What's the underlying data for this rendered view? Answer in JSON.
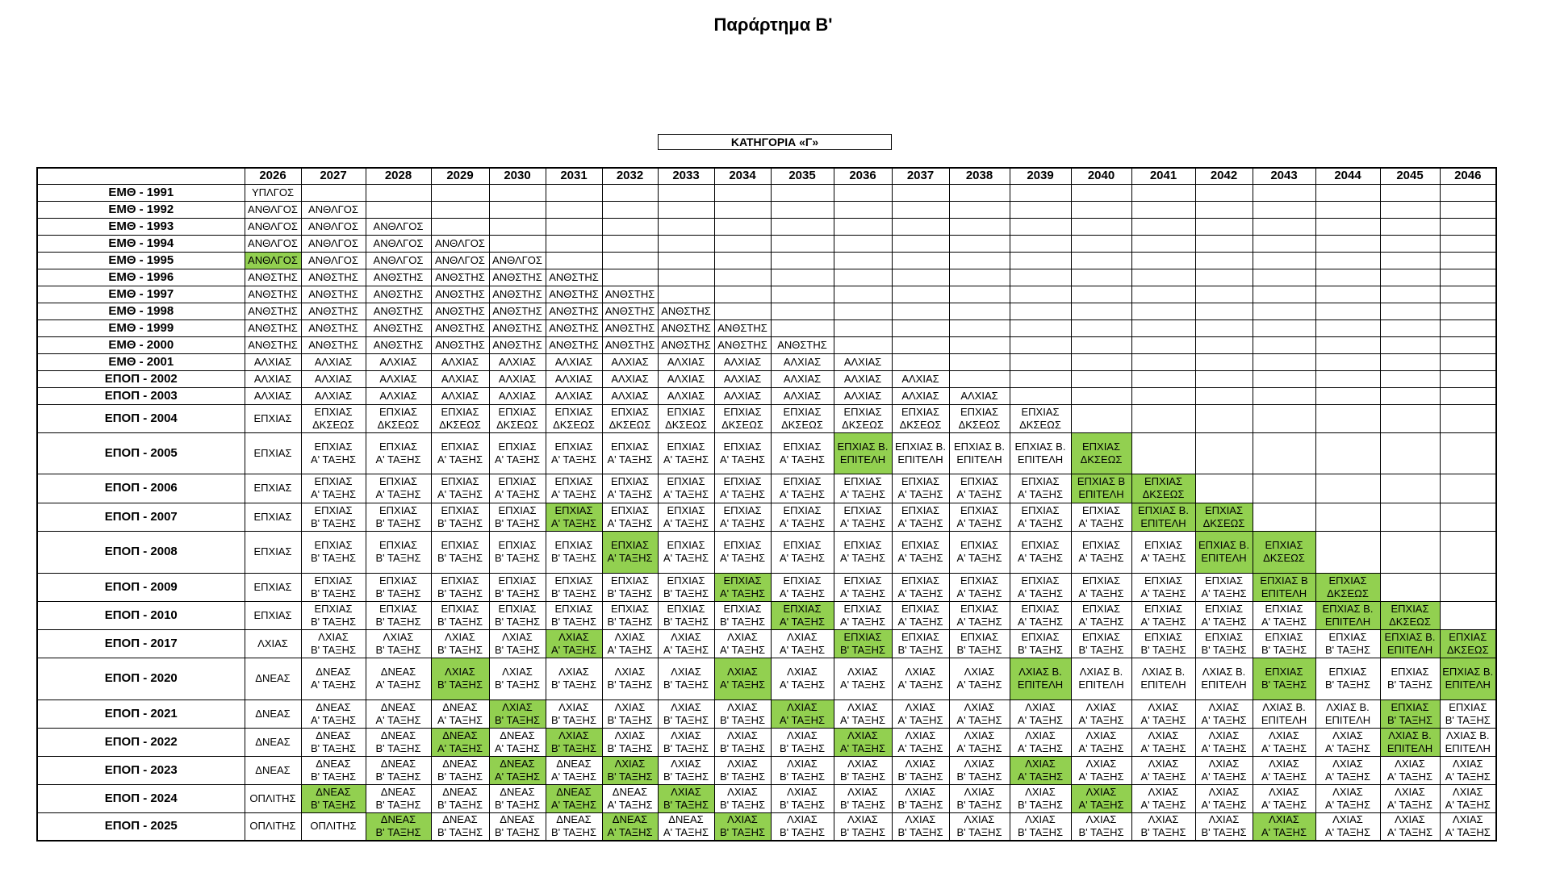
{
  "title": "Παράρτημα Β'",
  "category": "ΚΑΤΗΓΟΡΙΑ «Γ»",
  "colors": {
    "highlight": "#92d050",
    "border": "#000000"
  },
  "table": {
    "years": [
      "2026",
      "2027",
      "2028",
      "2029",
      "2030",
      "2031",
      "2032",
      "2033",
      "2034",
      "2035",
      "2036",
      "2037",
      "2038",
      "2039",
      "2040",
      "2041",
      "2042",
      "2043",
      "2044",
      "2045",
      "2046"
    ],
    "rows": [
      {
        "label": "ΕΜΘ - 1991",
        "cells": [
          "ΥΠΛΓΟΣ"
        ]
      },
      {
        "label": "ΕΜΘ - 1992",
        "cells": [
          "ΑΝΘΛΓΟΣ",
          "ΑΝΘΛΓΟΣ"
        ]
      },
      {
        "label": "ΕΜΘ - 1993",
        "cells": [
          "ΑΝΘΛΓΟΣ",
          "ΑΝΘΛΓΟΣ",
          "ΑΝΘΛΓΟΣ"
        ]
      },
      {
        "label": "ΕΜΘ - 1994",
        "cells": [
          "ΑΝΘΛΓΟΣ",
          "ΑΝΘΛΓΟΣ",
          "ΑΝΘΛΓΟΣ",
          "ΑΝΘΛΓΟΣ"
        ]
      },
      {
        "label": "ΕΜΘ - 1995",
        "cells": [
          "ΑΝΘΛΓΟΣ",
          "ΑΝΘΛΓΟΣ",
          "ΑΝΘΛΓΟΣ",
          "ΑΝΘΛΓΟΣ",
          "ΑΝΘΛΓΟΣ"
        ],
        "highlight": [
          0
        ]
      },
      {
        "label": "ΕΜΘ - 1996",
        "cells": [
          "ΑΝΘΣΤΗΣ",
          "ΑΝΘΣΤΗΣ",
          "ΑΝΘΣΤΗΣ",
          "ΑΝΘΣΤΗΣ",
          "ΑΝΘΣΤΗΣ",
          "ΑΝΘΣΤΗΣ"
        ]
      },
      {
        "label": "ΕΜΘ - 1997",
        "cells": [
          "ΑΝΘΣΤΗΣ",
          "ΑΝΘΣΤΗΣ",
          "ΑΝΘΣΤΗΣ",
          "ΑΝΘΣΤΗΣ",
          "ΑΝΘΣΤΗΣ",
          "ΑΝΘΣΤΗΣ",
          "ΑΝΘΣΤΗΣ"
        ]
      },
      {
        "label": "ΕΜΘ - 1998",
        "cells": [
          "ΑΝΘΣΤΗΣ",
          "ΑΝΘΣΤΗΣ",
          "ΑΝΘΣΤΗΣ",
          "ΑΝΘΣΤΗΣ",
          "ΑΝΘΣΤΗΣ",
          "ΑΝΘΣΤΗΣ",
          "ΑΝΘΣΤΗΣ",
          "ΑΝΘΣΤΗΣ"
        ]
      },
      {
        "label": "ΕΜΘ - 1999",
        "cells": [
          "ΑΝΘΣΤΗΣ",
          "ΑΝΘΣΤΗΣ",
          "ΑΝΘΣΤΗΣ",
          "ΑΝΘΣΤΗΣ",
          "ΑΝΘΣΤΗΣ",
          "ΑΝΘΣΤΗΣ",
          "ΑΝΘΣΤΗΣ",
          "ΑΝΘΣΤΗΣ",
          "ΑΝΘΣΤΗΣ"
        ]
      },
      {
        "label": "ΕΜΘ - 2000",
        "cells": [
          "ΑΝΘΣΤΗΣ",
          "ΑΝΘΣΤΗΣ",
          "ΑΝΘΣΤΗΣ",
          "ΑΝΘΣΤΗΣ",
          "ΑΝΘΣΤΗΣ",
          "ΑΝΘΣΤΗΣ",
          "ΑΝΘΣΤΗΣ",
          "ΑΝΘΣΤΗΣ",
          "ΑΝΘΣΤΗΣ",
          "ΑΝΘΣΤΗΣ"
        ]
      },
      {
        "label": "ΕΜΘ - 2001",
        "cells": [
          "ΑΛΧΙΑΣ",
          "ΑΛΧΙΑΣ",
          "ΑΛΧΙΑΣ",
          "ΑΛΧΙΑΣ",
          "ΑΛΧΙΑΣ",
          "ΑΛΧΙΑΣ",
          "ΑΛΧΙΑΣ",
          "ΑΛΧΙΑΣ",
          "ΑΛΧΙΑΣ",
          "ΑΛΧΙΑΣ",
          "ΑΛΧΙΑΣ"
        ]
      },
      {
        "label": "ΕΠΟΠ - 2002",
        "cells": [
          "ΑΛΧΙΑΣ",
          "ΑΛΧΙΑΣ",
          "ΑΛΧΙΑΣ",
          "ΑΛΧΙΑΣ",
          "ΑΛΧΙΑΣ",
          "ΑΛΧΙΑΣ",
          "ΑΛΧΙΑΣ",
          "ΑΛΧΙΑΣ",
          "ΑΛΧΙΑΣ",
          "ΑΛΧΙΑΣ",
          "ΑΛΧΙΑΣ",
          "ΑΛΧΙΑΣ"
        ]
      },
      {
        "label": "ΕΠΟΠ - 2003",
        "cells": [
          "ΑΛΧΙΑΣ",
          "ΑΛΧΙΑΣ",
          "ΑΛΧΙΑΣ",
          "ΑΛΧΙΑΣ",
          "ΑΛΧΙΑΣ",
          "ΑΛΧΙΑΣ",
          "ΑΛΧΙΑΣ",
          "ΑΛΧΙΑΣ",
          "ΑΛΧΙΑΣ",
          "ΑΛΧΙΑΣ",
          "ΑΛΧΙΑΣ",
          "ΑΛΧΙΑΣ",
          "ΑΛΧΙΑΣ"
        ]
      },
      {
        "label": "ΕΠΟΠ - 2004",
        "cells": [
          "ΕΠΧΙΑΣ",
          "ΕΠΧΙΑΣ\nΔΚΣΕΩΣ",
          "ΕΠΧΙΑΣ\nΔΚΣΕΩΣ",
          "ΕΠΧΙΑΣ\nΔΚΣΕΩΣ",
          "ΕΠΧΙΑΣ\nΔΚΣΕΩΣ",
          "ΕΠΧΙΑΣ\nΔΚΣΕΩΣ",
          "ΕΠΧΙΑΣ\nΔΚΣΕΩΣ",
          "ΕΠΧΙΑΣ\nΔΚΣΕΩΣ",
          "ΕΠΧΙΑΣ\nΔΚΣΕΩΣ",
          "ΕΠΧΙΑΣ\nΔΚΣΕΩΣ",
          "ΕΠΧΙΑΣ\nΔΚΣΕΩΣ",
          "ΕΠΧΙΑΣ\nΔΚΣΕΩΣ",
          "ΕΠΧΙΑΣ\nΔΚΣΕΩΣ",
          "ΕΠΧΙΑΣ\nΔΚΣΕΩΣ"
        ]
      },
      {
        "label": "ΕΠΟΠ - 2005",
        "cells": [
          "ΕΠΧΙΑΣ",
          "ΕΠΧΙΑΣ\nΑ' ΤΑΞΗΣ",
          "ΕΠΧΙΑΣ\nΑ' ΤΑΞΗΣ",
          "ΕΠΧΙΑΣ\nΑ' ΤΑΞΗΣ",
          "ΕΠΧΙΑΣ\nΑ' ΤΑΞΗΣ",
          "ΕΠΧΙΑΣ\nΑ' ΤΑΞΗΣ",
          "ΕΠΧΙΑΣ\nΑ' ΤΑΞΗΣ",
          "ΕΠΧΙΑΣ\nΑ' ΤΑΞΗΣ",
          "ΕΠΧΙΑΣ\nΑ' ΤΑΞΗΣ",
          "ΕΠΧΙΑΣ\nΑ' ΤΑΞΗΣ",
          "ΕΠΧΙΑΣ Β.\nΕΠΙΤΕΛΗ",
          "ΕΠΧΙΑΣ Β.\nΕΠΙΤΕΛΗ",
          "ΕΠΧΙΑΣ Β.\nΕΠΙΤΕΛΗ",
          "ΕΠΧΙΑΣ Β.\nΕΠΙΤΕΛΗ",
          "ΕΠΧΙΑΣ\nΔΚΣΕΩΣ"
        ],
        "highlight": [
          10,
          14
        ]
      },
      {
        "label": "ΕΠΟΠ - 2006",
        "cells": [
          "ΕΠΧΙΑΣ",
          "ΕΠΧΙΑΣ\nΑ' ΤΑΞΗΣ",
          "ΕΠΧΙΑΣ\nΑ' ΤΑΞΗΣ",
          "ΕΠΧΙΑΣ\nΑ' ΤΑΞΗΣ",
          "ΕΠΧΙΑΣ\nΑ' ΤΑΞΗΣ",
          "ΕΠΧΙΑΣ\nΑ' ΤΑΞΗΣ",
          "ΕΠΧΙΑΣ\nΑ' ΤΑΞΗΣ",
          "ΕΠΧΙΑΣ\nΑ' ΤΑΞΗΣ",
          "ΕΠΧΙΑΣ\nΑ' ΤΑΞΗΣ",
          "ΕΠΧΙΑΣ\nΑ' ΤΑΞΗΣ",
          "ΕΠΧΙΑΣ\nΑ' ΤΑΞΗΣ",
          "ΕΠΧΙΑΣ\nΑ' ΤΑΞΗΣ",
          "ΕΠΧΙΑΣ\nΑ' ΤΑΞΗΣ",
          "ΕΠΧΙΑΣ\nΑ' ΤΑΞΗΣ",
          "ΕΠΧΙΑΣ Β\nΕΠΙΤΕΛΗ",
          "ΕΠΧΙΑΣ\nΔΚΣΕΩΣ"
        ],
        "highlight": [
          14,
          15
        ]
      },
      {
        "label": "ΕΠΟΠ - 2007",
        "cells": [
          "ΕΠΧΙΑΣ",
          "ΕΠΧΙΑΣ\nΒ' ΤΑΞΗΣ",
          "ΕΠΧΙΑΣ\nΒ' ΤΑΞΗΣ",
          "ΕΠΧΙΑΣ\nΒ' ΤΑΞΗΣ",
          "ΕΠΧΙΑΣ\nΒ' ΤΑΞΗΣ",
          "ΕΠΧΙΑΣ\nΑ' ΤΑΞΗΣ",
          "ΕΠΧΙΑΣ\nΑ' ΤΑΞΗΣ",
          "ΕΠΧΙΑΣ\nΑ' ΤΑΞΗΣ",
          "ΕΠΧΙΑΣ\nΑ' ΤΑΞΗΣ",
          "ΕΠΧΙΑΣ\nΑ' ΤΑΞΗΣ",
          "ΕΠΧΙΑΣ\nΑ' ΤΑΞΗΣ",
          "ΕΠΧΙΑΣ\nΑ' ΤΑΞΗΣ",
          "ΕΠΧΙΑΣ\nΑ' ΤΑΞΗΣ",
          "ΕΠΧΙΑΣ\nΑ' ΤΑΞΗΣ",
          "ΕΠΧΙΑΣ\nΑ' ΤΑΞΗΣ",
          "ΕΠΧΙΑΣ Β.\nΕΠΙΤΕΛΗ",
          "ΕΠΧΙΑΣ\nΔΚΣΕΩΣ"
        ],
        "highlight": [
          5,
          15,
          16
        ]
      },
      {
        "label": "ΕΠΟΠ - 2008",
        "cells": [
          "ΕΠΧΙΑΣ",
          "ΕΠΧΙΑΣ\nΒ' ΤΑΞΗΣ",
          "ΕΠΧΙΑΣ\nΒ' ΤΑΞΗΣ",
          "ΕΠΧΙΑΣ\nΒ' ΤΑΞΗΣ",
          "ΕΠΧΙΑΣ\nΒ' ΤΑΞΗΣ",
          "ΕΠΧΙΑΣ\nΒ' ΤΑΞΗΣ",
          "ΕΠΧΙΑΣ\nΑ' ΤΑΞΗΣ",
          "ΕΠΧΙΑΣ\nΑ' ΤΑΞΗΣ",
          "ΕΠΧΙΑΣ\nΑ' ΤΑΞΗΣ",
          "ΕΠΧΙΑΣ\nΑ' ΤΑΞΗΣ",
          "ΕΠΧΙΑΣ\nΑ' ΤΑΞΗΣ",
          "ΕΠΧΙΑΣ\nΑ' ΤΑΞΗΣ",
          "ΕΠΧΙΑΣ\nΑ' ΤΑΞΗΣ",
          "ΕΠΧΙΑΣ\nΑ' ΤΑΞΗΣ",
          "ΕΠΧΙΑΣ\nΑ' ΤΑΞΗΣ",
          "ΕΠΧΙΑΣ\nΑ' ΤΑΞΗΣ",
          "ΕΠΧΙΑΣ Β.\nΕΠΙΤΕΛΗ",
          "ΕΠΧΙΑΣ\nΔΚΣΕΩΣ"
        ],
        "highlight": [
          6,
          16,
          17
        ]
      },
      {
        "label": "ΕΠΟΠ - 2009",
        "cells": [
          "ΕΠΧΙΑΣ",
          "ΕΠΧΙΑΣ\nΒ' ΤΑΞΗΣ",
          "ΕΠΧΙΑΣ\nΒ' ΤΑΞΗΣ",
          "ΕΠΧΙΑΣ\nΒ' ΤΑΞΗΣ",
          "ΕΠΧΙΑΣ\nΒ' ΤΑΞΗΣ",
          "ΕΠΧΙΑΣ\nΒ' ΤΑΞΗΣ",
          "ΕΠΧΙΑΣ\nΒ' ΤΑΞΗΣ",
          "ΕΠΧΙΑΣ\nΒ' ΤΑΞΗΣ",
          "ΕΠΧΙΑΣ\nΑ' ΤΑΞΗΣ",
          "ΕΠΧΙΑΣ\nΑ' ΤΑΞΗΣ",
          "ΕΠΧΙΑΣ\nΑ' ΤΑΞΗΣ",
          "ΕΠΧΙΑΣ\nΑ' ΤΑΞΗΣ",
          "ΕΠΧΙΑΣ\nΑ' ΤΑΞΗΣ",
          "ΕΠΧΙΑΣ\nΑ' ΤΑΞΗΣ",
          "ΕΠΧΙΑΣ\nΑ' ΤΑΞΗΣ",
          "ΕΠΧΙΑΣ\nΑ' ΤΑΞΗΣ",
          "ΕΠΧΙΑΣ\nΑ' ΤΑΞΗΣ",
          "ΕΠΧΙΑΣ Β\nΕΠΙΤΕΛΗ",
          "ΕΠΧΙΑΣ\nΔΚΣΕΩΣ"
        ],
        "highlight": [
          8,
          17,
          18
        ]
      },
      {
        "label": "ΕΠΟΠ - 2010",
        "cells": [
          "ΕΠΧΙΑΣ",
          "ΕΠΧΙΑΣ\nΒ' ΤΑΞΗΣ",
          "ΕΠΧΙΑΣ\nΒ' ΤΑΞΗΣ",
          "ΕΠΧΙΑΣ\nΒ' ΤΑΞΗΣ",
          "ΕΠΧΙΑΣ\nΒ' ΤΑΞΗΣ",
          "ΕΠΧΙΑΣ\nΒ' ΤΑΞΗΣ",
          "ΕΠΧΙΑΣ\nΒ' ΤΑΞΗΣ",
          "ΕΠΧΙΑΣ\nΒ' ΤΑΞΗΣ",
          "ΕΠΧΙΑΣ\nΒ' ΤΑΞΗΣ",
          "ΕΠΧΙΑΣ\nΑ' ΤΑΞΗΣ",
          "ΕΠΧΙΑΣ\nΑ' ΤΑΞΗΣ",
          "ΕΠΧΙΑΣ\nΑ' ΤΑΞΗΣ",
          "ΕΠΧΙΑΣ\nΑ' ΤΑΞΗΣ",
          "ΕΠΧΙΑΣ\nΑ' ΤΑΞΗΣ",
          "ΕΠΧΙΑΣ\nΑ' ΤΑΞΗΣ",
          "ΕΠΧΙΑΣ\nΑ' ΤΑΞΗΣ",
          "ΕΠΧΙΑΣ\nΑ' ΤΑΞΗΣ",
          "ΕΠΧΙΑΣ\nΑ' ΤΑΞΗΣ",
          "ΕΠΧΙΑΣ Β.\nΕΠΙΤΕΛΗ",
          "ΕΠΧΙΑΣ\nΔΚΣΕΩΣ"
        ],
        "highlight": [
          9,
          18,
          19
        ]
      },
      {
        "label": "ΕΠΟΠ - 2017",
        "cells": [
          "ΛΧΙΑΣ",
          "ΛΧΙΑΣ\nΒ' ΤΑΞΗΣ",
          "ΛΧΙΑΣ\nΒ' ΤΑΞΗΣ",
          "ΛΧΙΑΣ\nΒ' ΤΑΞΗΣ",
          "ΛΧΙΑΣ\nΒ' ΤΑΞΗΣ",
          "ΛΧΙΑΣ\nΑ' ΤΑΞΗΣ",
          "ΛΧΙΑΣ\nΑ' ΤΑΞΗΣ",
          "ΛΧΙΑΣ\nΑ' ΤΑΞΗΣ",
          "ΛΧΙΑΣ\nΑ' ΤΑΞΗΣ",
          "ΛΧΙΑΣ\nΑ' ΤΑΞΗΣ",
          "ΕΠΧΙΑΣ\nΒ' ΤΑΞΗΣ",
          "ΕΠΧΙΑΣ\nΒ' ΤΑΞΗΣ",
          "ΕΠΧΙΑΣ\nΒ' ΤΑΞΗΣ",
          "ΕΠΧΙΑΣ\nΒ' ΤΑΞΗΣ",
          "ΕΠΧΙΑΣ\nΒ' ΤΑΞΗΣ",
          "ΕΠΧΙΑΣ\nΒ' ΤΑΞΗΣ",
          "ΕΠΧΙΑΣ\nΒ' ΤΑΞΗΣ",
          "ΕΠΧΙΑΣ\nΒ' ΤΑΞΗΣ",
          "ΕΠΧΙΑΣ\nΒ' ΤΑΞΗΣ",
          "ΕΠΧΙΑΣ Β.\nΕΠΙΤΕΛΗ",
          "ΕΠΧΙΑΣ\nΔΚΣΕΩΣ"
        ],
        "highlight": [
          5,
          10,
          19,
          20
        ]
      },
      {
        "label": "ΕΠΟΠ - 2020",
        "cells": [
          "ΔΝΕΑΣ",
          "ΔΝΕΑΣ\nΑ' ΤΑΞΗΣ",
          "ΔΝΕΑΣ\nΑ' ΤΑΞΗΣ",
          "ΛΧΙΑΣ\nΒ' ΤΑΞΗΣ",
          "ΛΧΙΑΣ\nΒ' ΤΑΞΗΣ",
          "ΛΧΙΑΣ\nΒ' ΤΑΞΗΣ",
          "ΛΧΙΑΣ\nΒ' ΤΑΞΗΣ",
          "ΛΧΙΑΣ\nΒ' ΤΑΞΗΣ",
          "ΛΧΙΑΣ\nΑ' ΤΑΞΗΣ",
          "ΛΧΙΑΣ\nΑ' ΤΑΞΗΣ",
          "ΛΧΙΑΣ\nΑ' ΤΑΞΗΣ",
          "ΛΧΙΑΣ\nΑ' ΤΑΞΗΣ",
          "ΛΧΙΑΣ\nΑ' ΤΑΞΗΣ",
          "ΛΧΙΑΣ Β.\nΕΠΙΤΕΛΗ",
          "ΛΧΙΑΣ Β.\nΕΠΙΤΕΛΗ",
          "ΛΧΙΑΣ Β.\nΕΠΙΤΕΛΗ",
          "ΛΧΙΑΣ Β.\nΕΠΙΤΕΛΗ",
          "ΕΠΧΙΑΣ\nΒ' ΤΑΞΗΣ",
          "ΕΠΧΙΑΣ\nΒ' ΤΑΞΗΣ",
          "ΕΠΧΙΑΣ\nΒ' ΤΑΞΗΣ",
          "ΕΠΧΙΑΣ Β.\nΕΠΙΤΕΛΗ"
        ],
        "highlight": [
          3,
          8,
          13,
          17,
          20
        ]
      },
      {
        "label": "ΕΠΟΠ - 2021",
        "cells": [
          "ΔΝΕΑΣ",
          "ΔΝΕΑΣ\nΑ' ΤΑΞΗΣ",
          "ΔΝΕΑΣ\nΑ' ΤΑΞΗΣ",
          "ΔΝΕΑΣ\nΑ' ΤΑΞΗΣ",
          "ΛΧΙΑΣ\nΒ' ΤΑΞΗΣ",
          "ΛΧΙΑΣ\nΒ' ΤΑΞΗΣ",
          "ΛΧΙΑΣ\nΒ' ΤΑΞΗΣ",
          "ΛΧΙΑΣ\nΒ' ΤΑΞΗΣ",
          "ΛΧΙΑΣ\nΒ' ΤΑΞΗΣ",
          "ΛΧΙΑΣ\nΑ' ΤΑΞΗΣ",
          "ΛΧΙΑΣ\nΑ' ΤΑΞΗΣ",
          "ΛΧΙΑΣ\nΑ' ΤΑΞΗΣ",
          "ΛΧΙΑΣ\nΑ' ΤΑΞΗΣ",
          "ΛΧΙΑΣ\nΑ' ΤΑΞΗΣ",
          "ΛΧΙΑΣ\nΑ' ΤΑΞΗΣ",
          "ΛΧΙΑΣ\nΑ' ΤΑΞΗΣ",
          "ΛΧΙΑΣ\nΑ' ΤΑΞΗΣ",
          "ΛΧΙΑΣ Β.\nΕΠΙΤΕΛΗ",
          "ΛΧΙΑΣ Β.\nΕΠΙΤΕΛΗ",
          "ΕΠΧΙΑΣ\nΒ' ΤΑΞΗΣ",
          "ΕΠΧΙΑΣ\nΒ' ΤΑΞΗΣ"
        ],
        "highlight": [
          4,
          9,
          19
        ]
      },
      {
        "label": "ΕΠΟΠ - 2022",
        "cells": [
          "ΔΝΕΑΣ",
          "ΔΝΕΑΣ\nΒ' ΤΑΞΗΣ",
          "ΔΝΕΑΣ\nΒ' ΤΑΞΗΣ",
          "ΔΝΕΑΣ\nΑ' ΤΑΞΗΣ",
          "ΔΝΕΑΣ\nΑ' ΤΑΞΗΣ",
          "ΛΧΙΑΣ\nΒ' ΤΑΞΗΣ",
          "ΛΧΙΑΣ\nΒ' ΤΑΞΗΣ",
          "ΛΧΙΑΣ\nΒ' ΤΑΞΗΣ",
          "ΛΧΙΑΣ\nΒ' ΤΑΞΗΣ",
          "ΛΧΙΑΣ\nΒ' ΤΑΞΗΣ",
          "ΛΧΙΑΣ\nΑ' ΤΑΞΗΣ",
          "ΛΧΙΑΣ\nΑ' ΤΑΞΗΣ",
          "ΛΧΙΑΣ\nΑ' ΤΑΞΗΣ",
          "ΛΧΙΑΣ\nΑ' ΤΑΞΗΣ",
          "ΛΧΙΑΣ\nΑ' ΤΑΞΗΣ",
          "ΛΧΙΑΣ\nΑ' ΤΑΞΗΣ",
          "ΛΧΙΑΣ\nΑ' ΤΑΞΗΣ",
          "ΛΧΙΑΣ\nΑ' ΤΑΞΗΣ",
          "ΛΧΙΑΣ\nΑ' ΤΑΞΗΣ",
          "ΛΧΙΑΣ Β.\nΕΠΙΤΕΛΗ",
          "ΛΧΙΑΣ Β.\nΕΠΙΤΕΛΗ"
        ],
        "highlight": [
          3,
          5,
          10,
          19
        ]
      },
      {
        "label": "ΕΠΟΠ - 2023",
        "cells": [
          "ΔΝΕΑΣ",
          "ΔΝΕΑΣ\nΒ' ΤΑΞΗΣ",
          "ΔΝΕΑΣ\nΒ' ΤΑΞΗΣ",
          "ΔΝΕΑΣ\nΒ' ΤΑΞΗΣ",
          "ΔΝΕΑΣ\nΑ' ΤΑΞΗΣ",
          "ΔΝΕΑΣ\nΑ' ΤΑΞΗΣ",
          "ΛΧΙΑΣ\nΒ' ΤΑΞΗΣ",
          "ΛΧΙΑΣ\nΒ' ΤΑΞΗΣ",
          "ΛΧΙΑΣ\nΒ' ΤΑΞΗΣ",
          "ΛΧΙΑΣ\nΒ' ΤΑΞΗΣ",
          "ΛΧΙΑΣ\nΒ' ΤΑΞΗΣ",
          "ΛΧΙΑΣ\nΒ' ΤΑΞΗΣ",
          "ΛΧΙΑΣ\nΒ' ΤΑΞΗΣ",
          "ΛΧΙΑΣ\nΑ' ΤΑΞΗΣ",
          "ΛΧΙΑΣ\nΑ' ΤΑΞΗΣ",
          "ΛΧΙΑΣ\nΑ' ΤΑΞΗΣ",
          "ΛΧΙΑΣ\nΑ' ΤΑΞΗΣ",
          "ΛΧΙΑΣ\nΑ' ΤΑΞΗΣ",
          "ΛΧΙΑΣ\nΑ' ΤΑΞΗΣ",
          "ΛΧΙΑΣ\nΑ' ΤΑΞΗΣ",
          "ΛΧΙΑΣ\nΑ' ΤΑΞΗΣ"
        ],
        "highlight": [
          4,
          6,
          13
        ]
      },
      {
        "label": "ΕΠΟΠ - 2024",
        "cells": [
          "ΟΠΛΙΤΗΣ",
          "ΔΝΕΑΣ\nΒ' ΤΑΞΗΣ",
          "ΔΝΕΑΣ\nΒ' ΤΑΞΗΣ",
          "ΔΝΕΑΣ\nΒ' ΤΑΞΗΣ",
          "ΔΝΕΑΣ\nΒ' ΤΑΞΗΣ",
          "ΔΝΕΑΣ\nΑ' ΤΑΞΗΣ",
          "ΔΝΕΑΣ\nΑ' ΤΑΞΗΣ",
          "ΛΧΙΑΣ\nΒ' ΤΑΞΗΣ",
          "ΛΧΙΑΣ\nΒ' ΤΑΞΗΣ",
          "ΛΧΙΑΣ\nΒ' ΤΑΞΗΣ",
          "ΛΧΙΑΣ\nΒ' ΤΑΞΗΣ",
          "ΛΧΙΑΣ\nΒ' ΤΑΞΗΣ",
          "ΛΧΙΑΣ\nΒ' ΤΑΞΗΣ",
          "ΛΧΙΑΣ\nΒ' ΤΑΞΗΣ",
          "ΛΧΙΑΣ\nΑ' ΤΑΞΗΣ",
          "ΛΧΙΑΣ\nΑ' ΤΑΞΗΣ",
          "ΛΧΙΑΣ\nΑ' ΤΑΞΗΣ",
          "ΛΧΙΑΣ\nΑ' ΤΑΞΗΣ",
          "ΛΧΙΑΣ\nΑ' ΤΑΞΗΣ",
          "ΛΧΙΑΣ\nΑ' ΤΑΞΗΣ",
          "ΛΧΙΑΣ\nΑ' ΤΑΞΗΣ"
        ],
        "highlight": [
          1,
          5,
          7,
          14
        ]
      },
      {
        "label": "ΕΠΟΠ - 2025",
        "cells": [
          "ΟΠΛΙΤΗΣ",
          "ΟΠΛΙΤΗΣ",
          "ΔΝΕΑΣ\nΒ' ΤΑΞΗΣ",
          "ΔΝΕΑΣ\nΒ' ΤΑΞΗΣ",
          "ΔΝΕΑΣ\nΒ' ΤΑΞΗΣ",
          "ΔΝΕΑΣ\nΒ' ΤΑΞΗΣ",
          "ΔΝΕΑΣ\nΑ' ΤΑΞΗΣ",
          "ΔΝΕΑΣ\nΑ' ΤΑΞΗΣ",
          "ΛΧΙΑΣ\nΒ' ΤΑΞΗΣ",
          "ΛΧΙΑΣ\nΒ' ΤΑΞΗΣ",
          "ΛΧΙΑΣ\nΒ' ΤΑΞΗΣ",
          "ΛΧΙΑΣ\nΒ' ΤΑΞΗΣ",
          "ΛΧΙΑΣ\nΒ' ΤΑΞΗΣ",
          "ΛΧΙΑΣ\nΒ' ΤΑΞΗΣ",
          "ΛΧΙΑΣ\nΒ' ΤΑΞΗΣ",
          "ΛΧΙΑΣ\nΒ' ΤΑΞΗΣ",
          "ΛΧΙΑΣ\nΒ' ΤΑΞΗΣ",
          "ΛΧΙΑΣ\nΑ' ΤΑΞΗΣ",
          "ΛΧΙΑΣ\nΑ' ΤΑΞΗΣ",
          "ΛΧΙΑΣ\nΑ' ΤΑΞΗΣ",
          "ΛΧΙΑΣ\nΑ' ΤΑΞΗΣ"
        ],
        "highlight": [
          2,
          6,
          8,
          17
        ]
      }
    ]
  }
}
